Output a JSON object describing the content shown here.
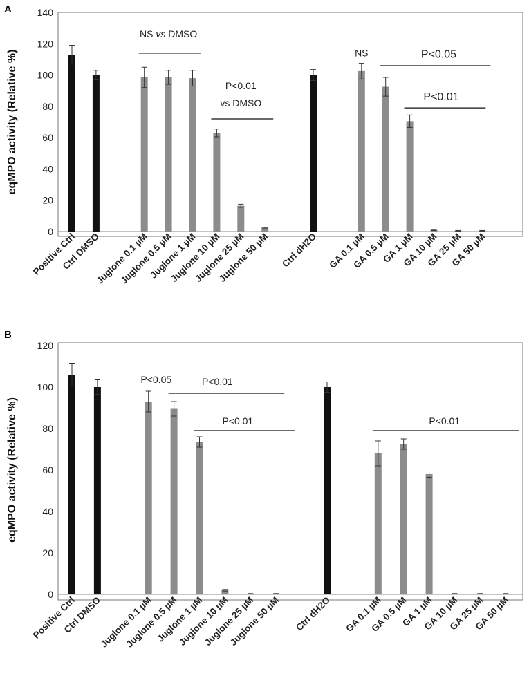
{
  "chart_data": [
    {
      "type": "bar",
      "panel_label": "A",
      "ylabel": "eqMPO activity (Relative %)",
      "ylim": [
        0,
        140
      ],
      "yticks": [
        0,
        20,
        40,
        60,
        80,
        100,
        120,
        140
      ],
      "categories": [
        "Positive Ctrl",
        "Ctrl DMSO",
        "",
        "Juglone 0.1 µM",
        "Juglone 0.5 µM",
        "Juglone 1 µM",
        "Juglone 10 µM",
        "Juglone 25 µM",
        "Juglone 50 µM",
        "",
        "Ctrl dH2O",
        "",
        "GA 0.1 µM",
        "GA 0.5 µM",
        "GA 1 µM",
        "GA 10 µM",
        "GA 25 µM",
        "GA 50 µM"
      ],
      "values": [
        113,
        100,
        null,
        98.5,
        98.5,
        98,
        63,
        16.5,
        2.5,
        null,
        100,
        null,
        102.5,
        92.5,
        70.5,
        1,
        0.5,
        0.5
      ],
      "errors": [
        6,
        3,
        null,
        6.5,
        4.5,
        5,
        2.5,
        1,
        0.3,
        null,
        3.5,
        null,
        5,
        6,
        4,
        0.3,
        0.2,
        0.2
      ],
      "bar_colors": [
        "#111111",
        "#111111",
        null,
        "#8c8c8c",
        "#8c8c8c",
        "#8c8c8c",
        "#8c8c8c",
        "#8c8c8c",
        "#8c8c8c",
        null,
        "#111111",
        null,
        "#8c8c8c",
        "#8c8c8c",
        "#8c8c8c",
        "#8c8c8c",
        "#8c8c8c",
        "#8c8c8c"
      ],
      "annotations": [
        {
          "text": "NS",
          "text2": "vs",
          "text3": "DMSO",
          "italic_part": "vs",
          "line": {
            "from": 3,
            "to": 5,
            "y": 114
          },
          "label_y": 124,
          "size": "small"
        },
        {
          "text": "P<0.01",
          "line2": "vs DMSO",
          "line": {
            "from": 6,
            "to": 8,
            "y": 72
          },
          "label_y": 91,
          "label2_y": 80,
          "label_x": 7,
          "size": "small"
        },
        {
          "text": "NS",
          "line": null,
          "label_y": 112,
          "label_x": 12,
          "size": "small"
        },
        {
          "text": "P<0.05",
          "line": {
            "from": 13,
            "to": 17,
            "y": 106
          },
          "label_y": 111,
          "label_x": 15.2,
          "size": "large"
        },
        {
          "text": "P<0.01",
          "line": {
            "from": 14,
            "to": 16.8,
            "y": 79
          },
          "label_y": 84,
          "label_x": 15.3,
          "size": "large"
        }
      ]
    },
    {
      "type": "bar",
      "panel_label": "B",
      "ylabel": "eqMPO activity (Relative %)",
      "ylim": [
        0,
        120
      ],
      "yticks": [
        0,
        20,
        40,
        60,
        80,
        100,
        120
      ],
      "categories": [
        "Positive Ctrl",
        "Ctrl DMSO",
        "",
        "Juglone 0.1 µM",
        "Juglone 0.5 µM",
        "Juglone 1 µM",
        "Juglone 10 µM",
        "Juglone 25 µM",
        "Juglone 50 µM",
        "",
        "Ctrl dH2O",
        "",
        "GA 0.1 µM",
        "GA 0.5 µM",
        "GA 1 µM",
        "GA 10 µM",
        "GA 25 µM",
        "GA 50 µM"
      ],
      "values": [
        106,
        100,
        null,
        93,
        89.5,
        73.5,
        2,
        0.3,
        0.3,
        null,
        100,
        null,
        68,
        72.5,
        58,
        0.3,
        0.3,
        0.3
      ],
      "errors": [
        5.5,
        3.5,
        null,
        5,
        3.5,
        2.5,
        0.4,
        0.1,
        0.1,
        null,
        2.5,
        null,
        6,
        2.5,
        1.5,
        0.1,
        0.1,
        0.1
      ],
      "bar_colors": [
        "#111111",
        "#111111",
        null,
        "#8c8c8c",
        "#8c8c8c",
        "#8c8c8c",
        "#8c8c8c",
        "#8c8c8c",
        "#8c8c8c",
        null,
        "#111111",
        null,
        "#8c8c8c",
        "#8c8c8c",
        "#8c8c8c",
        "#8c8c8c",
        "#8c8c8c",
        "#8c8c8c"
      ],
      "annotations": [
        {
          "text": "P<0.05",
          "line": null,
          "label_y": 102,
          "label_x": 3.3,
          "size": "small"
        },
        {
          "text": "P<0.01",
          "line": {
            "from": 4,
            "to": 8,
            "y": 97
          },
          "label_y": 101,
          "label_x": 5.7,
          "size": "small"
        },
        {
          "text": "P<0.01",
          "line": {
            "from": 5,
            "to": 8.4,
            "y": 79
          },
          "label_y": 82,
          "label_x": 6.5,
          "size": "small"
        },
        {
          "text": "P<0.01",
          "line": {
            "from": 12,
            "to": 17.2,
            "y": 79
          },
          "label_y": 82,
          "label_x": 14.6,
          "size": "small"
        }
      ]
    }
  ]
}
